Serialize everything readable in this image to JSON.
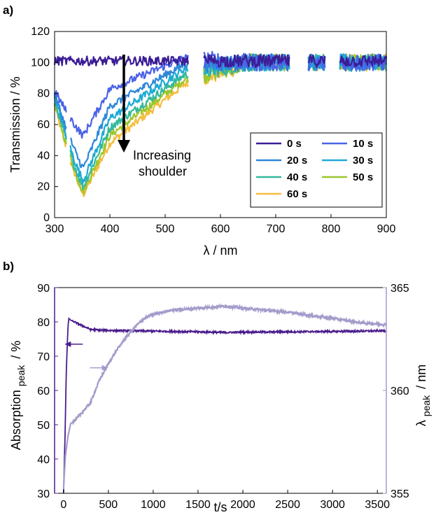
{
  "panels": {
    "a": {
      "label": "a)"
    },
    "b": {
      "label": "b)"
    }
  },
  "colors": {
    "s0": "#3b1d96",
    "s10": "#4b63e8",
    "s20": "#2e87d9",
    "s30": "#1eaad6",
    "s40": "#33b89d",
    "s50": "#9cc62e",
    "s60": "#f5bd3c",
    "absorption": "#4b1c8c",
    "lambda": "#a39ccb"
  },
  "chart_data": [
    {
      "type": "line",
      "xlabel": "λ / nm",
      "ylabel": "Transmission / %",
      "xlim": [
        300,
        900
      ],
      "ylim": [
        0,
        120
      ],
      "xticks": [
        300,
        400,
        500,
        600,
        700,
        800,
        900
      ],
      "yticks": [
        0,
        20,
        40,
        60,
        80,
        100,
        120
      ],
      "legend_placement": "bottom-right",
      "annotation": {
        "line1": "Increasing",
        "line2": "shoulder"
      },
      "series": [
        {
          "name": "0 s",
          "key": "s0",
          "min_transmission": 100,
          "noise": 3
        },
        {
          "name": "10 s",
          "key": "s10",
          "min_transmission": 53,
          "noise": 2.5
        },
        {
          "name": "20 s",
          "key": "s20",
          "min_transmission": 32,
          "noise": 2.5
        },
        {
          "name": "30 s",
          "key": "s30",
          "min_transmission": 24,
          "noise": 2.5
        },
        {
          "name": "40 s",
          "key": "s40",
          "min_transmission": 20,
          "noise": 2.5
        },
        {
          "name": "50 s",
          "key": "s50",
          "min_transmission": 17,
          "noise": 2.5
        },
        {
          "name": "60 s",
          "key": "s60",
          "min_transmission": 15,
          "noise": 2.5
        }
      ],
      "shoulder_values_at_400nm": {
        "10 s": 83,
        "20 s": 72,
        "30 s": 64,
        "40 s": 58,
        "50 s": 53,
        "60 s": 48
      },
      "values_at_535nm": {
        "10 s": 103,
        "20 s": 99,
        "30 s": 96,
        "40 s": 92,
        "50 s": 89,
        "60 s": 86
      },
      "data_gaps_nm": [
        [
          542,
          570
        ],
        [
          725,
          758
        ],
        [
          790,
          815
        ]
      ]
    },
    {
      "type": "line",
      "xlabel": "t/s",
      "ylabel_left": "Absorption",
      "ylabel_left_sub": "peak",
      "ylabel_left_unit": "/ %",
      "ylabel_right": "λ",
      "ylabel_right_sub": "peak",
      "ylabel_right_unit": "/ nm",
      "xlim": [
        -100,
        3600
      ],
      "ylim_left": [
        30,
        90
      ],
      "ylim_right": [
        355,
        365
      ],
      "xticks": [
        0,
        500,
        1000,
        1500,
        2000,
        2500,
        3000,
        3500
      ],
      "yticks_left": [
        30,
        40,
        50,
        60,
        70,
        80,
        90
      ],
      "yticks_right": [
        355,
        360,
        365
      ],
      "series": [
        {
          "key": "absorption",
          "axis": "left",
          "x": [
            0,
            15,
            30,
            50,
            60,
            80,
            120,
            200,
            300,
            400,
            500,
            700,
            1000,
            1500,
            1800,
            2000,
            2500,
            3000,
            3600
          ],
          "y": [
            30,
            45,
            65,
            79,
            81,
            80.5,
            80,
            79,
            77.8,
            77.6,
            77.5,
            77.4,
            77.3,
            77.1,
            76.9,
            77.0,
            77.1,
            77.2,
            77.4
          ]
        },
        {
          "key": "lambda",
          "axis": "right",
          "x": [
            0,
            20,
            50,
            80,
            120,
            200,
            300,
            400,
            500,
            600,
            700,
            800,
            900,
            1000,
            1200,
            1500,
            1800,
            2000,
            2500,
            3000,
            3300,
            3600
          ],
          "y": [
            355.2,
            356.8,
            357.8,
            358.4,
            358.5,
            358.9,
            359.4,
            360.5,
            361.3,
            362.0,
            362.6,
            363.1,
            363.5,
            363.7,
            363.9,
            364.0,
            364.1,
            364.0,
            363.8,
            363.5,
            363.3,
            363.2
          ]
        }
      ],
      "arrows": [
        {
          "points": "left",
          "x": 90,
          "y": 73.5,
          "axis": "left"
        },
        {
          "points": "right",
          "x": 420,
          "y": 361.1,
          "axis": "right"
        }
      ]
    }
  ]
}
